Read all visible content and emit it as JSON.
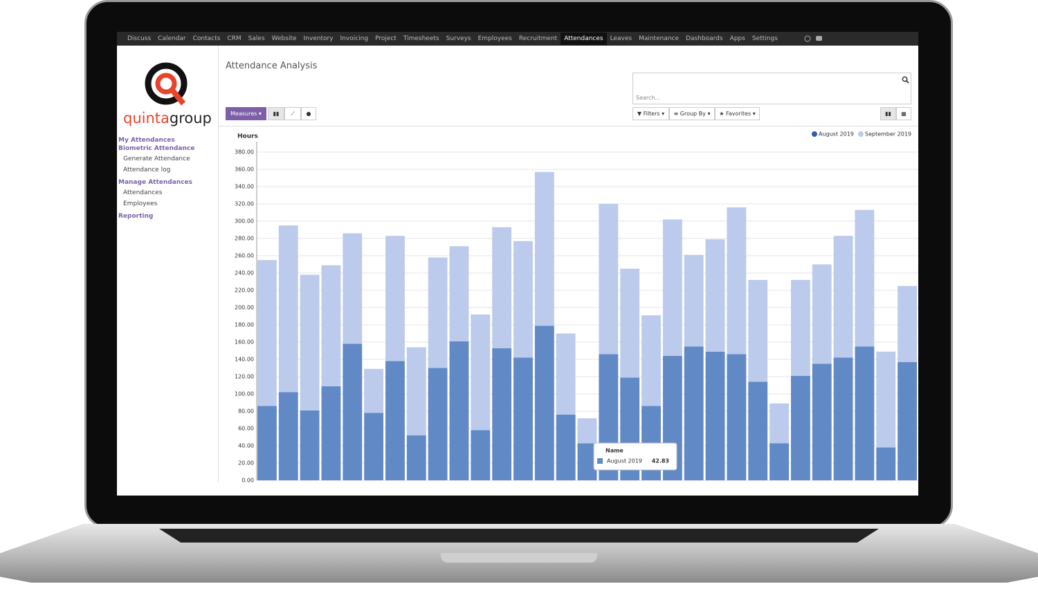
{
  "nav": {
    "items": [
      "Discuss",
      "Calendar",
      "Contacts",
      "CRM",
      "Sales",
      "Website",
      "Inventory",
      "Invoicing",
      "Project",
      "Timesheets",
      "Surveys",
      "Employees",
      "Recruitment",
      "Attendances",
      "Leaves",
      "Maintenance",
      "Dashboards",
      "Apps",
      "Settings"
    ]
  },
  "logo": {
    "accent": "quinta",
    "rest": "group"
  },
  "sidebar": {
    "sections": [
      {
        "title": "My Attendances",
        "items": []
      },
      {
        "title": "Biometric Attendance",
        "items": [
          "Generate Attendance",
          "Attendance log"
        ]
      },
      {
        "title": "Manage Attendances",
        "items": [
          "Attendances",
          "Employees"
        ]
      },
      {
        "title": "Reporting",
        "items": []
      }
    ]
  },
  "page_title": "Attendance Analysis",
  "toolbar": {
    "measures": "Measures",
    "search_placeholder": "Search...",
    "filters": "Filters",
    "group_by": "Group By",
    "favorites": "Favorites"
  },
  "chart_data": {
    "type": "stacked_bar",
    "y_label": "Hours",
    "categories": [
      null,
      null,
      null,
      null,
      null,
      null,
      null,
      null,
      null,
      null,
      null,
      null,
      null,
      null,
      null,
      null,
      null,
      null,
      null,
      null,
      null,
      null,
      null,
      null,
      null,
      null,
      null,
      null,
      null,
      null,
      null
    ],
    "series": [
      {
        "name": "August 2019",
        "color": "#6089c6",
        "values": [
          86,
          102,
          81,
          109,
          158,
          78,
          138,
          52,
          130,
          161,
          58,
          153,
          142,
          179,
          76,
          42.83,
          146,
          119,
          86,
          144,
          155,
          149,
          146,
          114,
          43,
          121,
          135,
          142,
          155,
          38,
          137
        ]
      },
      {
        "name": "September 2019",
        "color": "#bccbeb",
        "values": [
          169,
          193,
          157,
          140,
          128,
          51,
          145,
          102,
          128,
          110,
          134,
          140,
          135,
          178,
          94,
          29,
          174,
          126,
          105,
          158,
          106,
          130,
          170,
          118,
          46,
          111,
          115,
          141,
          158,
          111,
          88
        ]
      }
    ],
    "ylim": [
      0,
      392
    ],
    "yticks": [
      {
        "value": 0,
        "label": "0.00"
      },
      {
        "value": 20,
        "label": "20.00"
      },
      {
        "value": 40,
        "label": "40.00"
      },
      {
        "value": 60,
        "label": "60.00"
      },
      {
        "value": 80,
        "label": "80.00"
      },
      {
        "value": 100,
        "label": "100.00"
      },
      {
        "value": 120,
        "label": "120.00"
      },
      {
        "value": 140,
        "label": "140.00"
      },
      {
        "value": 160,
        "label": "160.00"
      },
      {
        "value": 180,
        "label": "180.00"
      },
      {
        "value": 200,
        "label": "200.00"
      },
      {
        "value": 220,
        "label": "220.00"
      },
      {
        "value": 240,
        "label": "240.00"
      },
      {
        "value": 260,
        "label": "260.00"
      },
      {
        "value": 280,
        "label": "280.00"
      },
      {
        "value": 300,
        "label": "300.00"
      },
      {
        "value": 320,
        "label": "320.00"
      },
      {
        "value": 340,
        "label": "340.00"
      },
      {
        "value": 360,
        "label": "360.00"
      },
      {
        "value": 380,
        "label": "380.00"
      }
    ],
    "grid": true,
    "legend": "top-right",
    "tooltip": {
      "header": "Name",
      "series": 0,
      "index": 15
    }
  }
}
